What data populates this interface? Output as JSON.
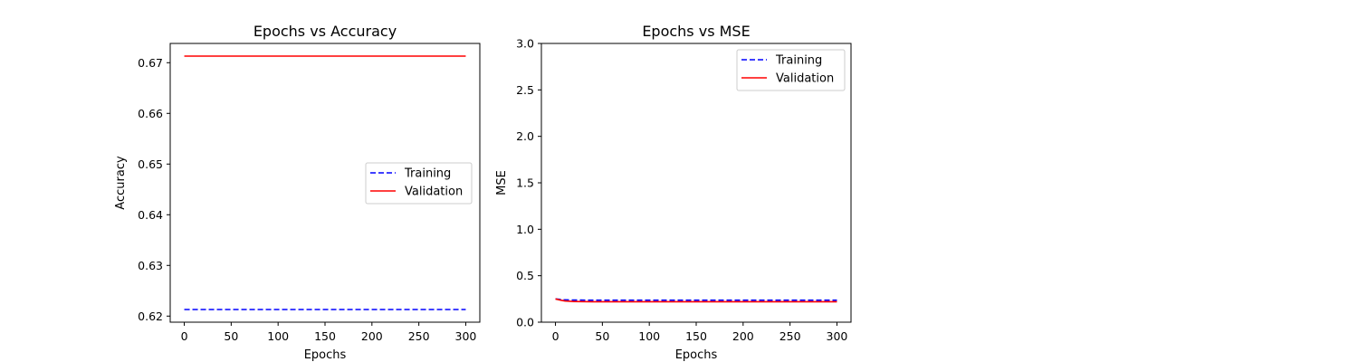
{
  "chart_data": [
    {
      "type": "line",
      "title": "Epochs vs Accuracy",
      "xlabel": "Epochs",
      "ylabel": "Accuracy",
      "xlim": [
        -15,
        315
      ],
      "ylim": [
        0.6188,
        0.6738
      ],
      "x_ticks": [
        0,
        50,
        100,
        150,
        200,
        250,
        300
      ],
      "y_ticks": [
        0.62,
        0.63,
        0.64,
        0.65,
        0.66,
        0.67
      ],
      "y_tick_labels": [
        "0.62",
        "0.63",
        "0.64",
        "0.65",
        "0.66",
        "0.67"
      ],
      "legend_position": "center-right",
      "series": [
        {
          "name": "Training",
          "color": "#0000ff",
          "style": "dashed",
          "x": [
            0,
            300
          ],
          "y": [
            0.6213,
            0.6213
          ]
        },
        {
          "name": "Validation",
          "color": "#ff0000",
          "style": "solid",
          "x": [
            0,
            300
          ],
          "y": [
            0.6713,
            0.6713
          ]
        }
      ]
    },
    {
      "type": "line",
      "title": "Epochs vs MSE",
      "xlabel": "Epochs",
      "ylabel": "MSE",
      "xlim": [
        -15,
        315
      ],
      "ylim": [
        0,
        3
      ],
      "x_ticks": [
        0,
        50,
        100,
        150,
        200,
        250,
        300
      ],
      "y_ticks": [
        0,
        0.5,
        1,
        1.5,
        2,
        2.5,
        3
      ],
      "y_tick_labels": [
        "0.0",
        "0.5",
        "1.0",
        "1.5",
        "2.0",
        "2.5",
        "3.0"
      ],
      "legend_position": "upper right",
      "series": [
        {
          "name": "Training",
          "color": "#0000ff",
          "style": "dashed",
          "x": [
            0,
            5,
            10,
            20,
            40,
            100,
            200,
            300
          ],
          "y": [
            0.25,
            0.245,
            0.24,
            0.238,
            0.237,
            0.237,
            0.237,
            0.237
          ]
        },
        {
          "name": "Validation",
          "color": "#ff0000",
          "style": "solid",
          "x": [
            0,
            5,
            10,
            20,
            40,
            100,
            200,
            300
          ],
          "y": [
            0.25,
            0.238,
            0.228,
            0.222,
            0.22,
            0.22,
            0.22,
            0.22
          ]
        }
      ]
    }
  ]
}
